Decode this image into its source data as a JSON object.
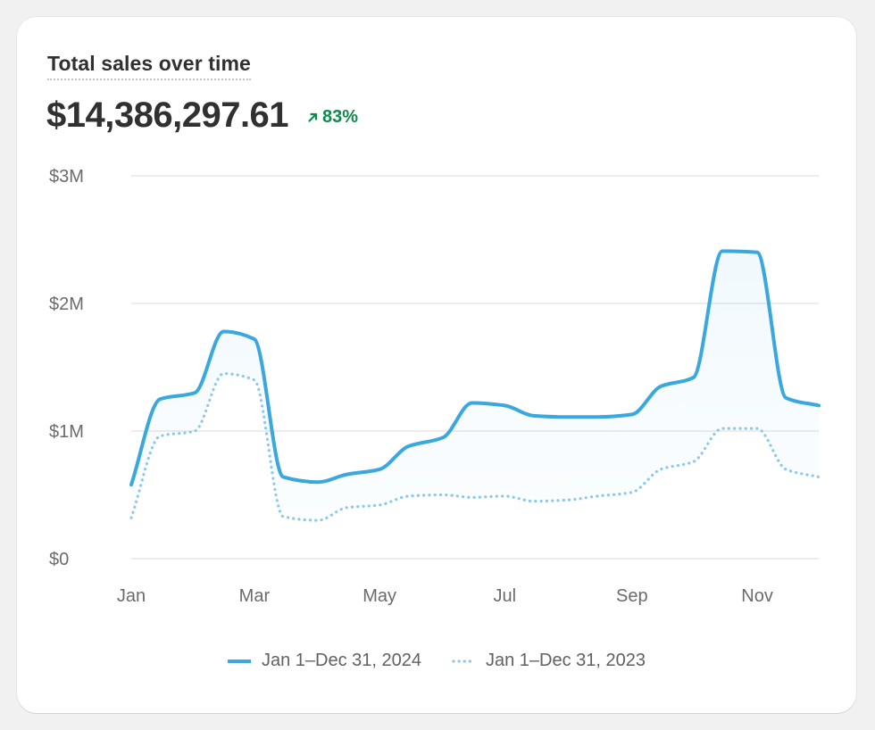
{
  "card": {
    "title": "Total sales over time",
    "total": "$14,386,297.61",
    "change": "83%",
    "change_direction": "up",
    "change_color": "#0e8a4d"
  },
  "legend": {
    "current": "Jan 1–Dec 31, 2024",
    "previous": "Jan 1–Dec 31, 2023"
  },
  "colors": {
    "current": "#3aa8de",
    "previous": "#8cc8ea"
  },
  "chart_data": {
    "type": "line",
    "title": "Total sales over time",
    "x_tick_labels": [
      "Jan",
      "Mar",
      "May",
      "Jul",
      "Sep",
      "Nov"
    ],
    "y_tick_labels": [
      "$0",
      "$1M",
      "$2M",
      "$3M"
    ],
    "y_ticks": [
      0,
      1000000,
      2000000,
      3000000
    ],
    "ylim": [
      0,
      3000000
    ],
    "x": [
      "2024-01-01",
      "2024-01-15",
      "2024-02-01",
      "2024-02-15",
      "2024-03-01",
      "2024-03-15",
      "2024-04-01",
      "2024-04-15",
      "2024-05-01",
      "2024-05-15",
      "2024-06-01",
      "2024-06-15",
      "2024-07-01",
      "2024-07-15",
      "2024-08-01",
      "2024-08-15",
      "2024-09-01",
      "2024-09-15",
      "2024-10-01",
      "2024-10-15",
      "2024-11-01",
      "2024-11-15",
      "2024-12-01"
    ],
    "series": [
      {
        "name": "Jan 1–Dec 31, 2024",
        "style": "solid",
        "values": [
          580000,
          1250000,
          1300000,
          1780000,
          1720000,
          640000,
          600000,
          660000,
          700000,
          880000,
          950000,
          1220000,
          1200000,
          1120000,
          1110000,
          1110000,
          1130000,
          1350000,
          1420000,
          2410000,
          2400000,
          1260000,
          1200000
        ]
      },
      {
        "name": "Jan 1–Dec 31, 2023",
        "style": "dotted",
        "values": [
          320000,
          960000,
          1000000,
          1450000,
          1400000,
          330000,
          300000,
          400000,
          420000,
          490000,
          500000,
          480000,
          490000,
          450000,
          460000,
          490000,
          520000,
          700000,
          760000,
          1020000,
          1020000,
          700000,
          640000
        ]
      }
    ],
    "grid": true,
    "legend_position": "bottom-center"
  }
}
